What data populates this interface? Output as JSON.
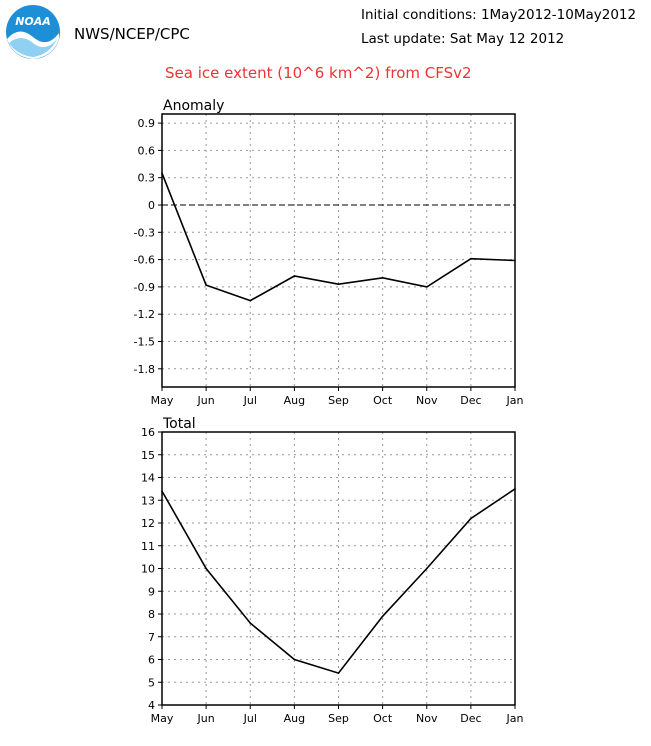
{
  "header": {
    "logo_text": "NOAA",
    "org": "NWS/NCEP/CPC",
    "initial_conditions": "Initial conditions: 1May2012-10May2012",
    "last_update": "Last update: Sat May 12 2012",
    "title": "Sea ice extent (10^6 km^2) from CFSv2"
  },
  "colors": {
    "title": "#ee3333",
    "logo_blue": "#1e8fd6",
    "logo_light": "#8fd0f3"
  },
  "chart_data": [
    {
      "type": "line",
      "title": "Anomaly",
      "categories": [
        "May",
        "Jun",
        "Jul",
        "Aug",
        "Sep",
        "Oct",
        "Nov",
        "Dec",
        "Jan"
      ],
      "values": [
        0.35,
        -0.88,
        -1.05,
        -0.78,
        -0.87,
        -0.8,
        -0.9,
        -0.59,
        -0.61
      ],
      "ylim": [
        -2.0,
        1.0
      ],
      "yticks": [
        "0.9",
        "0.6",
        "0.3",
        "0",
        "-0.3",
        "-0.6",
        "-0.9",
        "-1.2",
        "-1.5",
        "-1.8"
      ],
      "ytick_values": [
        0.9,
        0.6,
        0.3,
        0,
        -0.3,
        -0.6,
        -0.9,
        -1.2,
        -1.5,
        -1.8
      ],
      "zero_line": true,
      "grid": true
    },
    {
      "type": "line",
      "title": "Total",
      "categories": [
        "May",
        "Jun",
        "Jul",
        "Aug",
        "Sep",
        "Oct",
        "Nov",
        "Dec",
        "Jan"
      ],
      "values": [
        13.4,
        10.0,
        7.6,
        6.0,
        5.4,
        7.9,
        10.0,
        12.2,
        13.5
      ],
      "ylim": [
        4,
        16
      ],
      "yticks": [
        "16",
        "15",
        "14",
        "13",
        "12",
        "11",
        "10",
        "9",
        "8",
        "7",
        "6",
        "5",
        "4"
      ],
      "ytick_values": [
        16,
        15,
        14,
        13,
        12,
        11,
        10,
        9,
        8,
        7,
        6,
        5,
        4
      ],
      "zero_line": false,
      "grid": true
    }
  ]
}
